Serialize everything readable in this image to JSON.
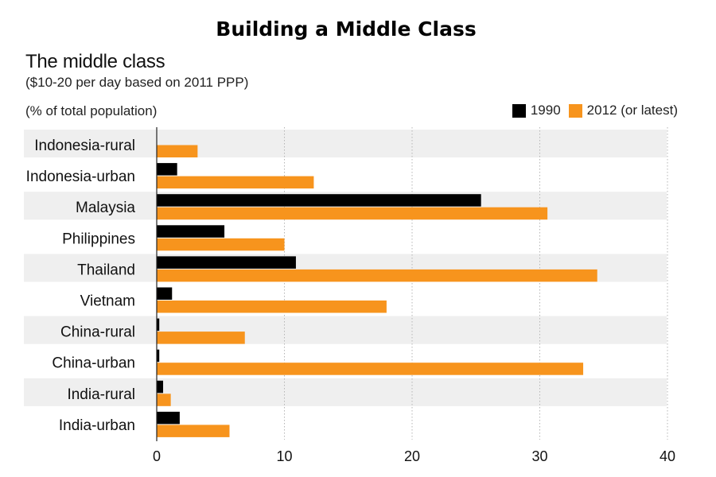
{
  "title": "Building a Middle Class",
  "subtitle": "The middle class",
  "note": "($10-20 per day based on 2011 PPP)",
  "unit_label": "(% of total population)",
  "colors": {
    "series_1990": "#000000",
    "series_2012": "#f7941d",
    "band": "#efefef",
    "grid": "#b5b5b5"
  },
  "chart_data": {
    "type": "bar",
    "orientation": "horizontal",
    "categories": [
      "Indonesia-rural",
      "Indonesia-urban",
      "Malaysia",
      "Philippines",
      "Thailand",
      "Vietnam",
      "China-rural",
      "China-urban",
      "India-rural",
      "India-urban"
    ],
    "series": [
      {
        "name": "1990",
        "values": [
          0,
          1.6,
          25.4,
          5.3,
          10.9,
          1.2,
          0.2,
          0.2,
          0.5,
          1.8
        ]
      },
      {
        "name": "2012 (or latest)",
        "values": [
          3.2,
          12.3,
          30.6,
          10.0,
          34.5,
          18.0,
          6.9,
          33.4,
          1.1,
          5.7
        ]
      }
    ],
    "xlim": [
      0,
      40
    ],
    "xticks": [
      "0",
      "10",
      "20",
      "30",
      "40"
    ],
    "grid": "vertical dotted",
    "legend": "top-right"
  }
}
